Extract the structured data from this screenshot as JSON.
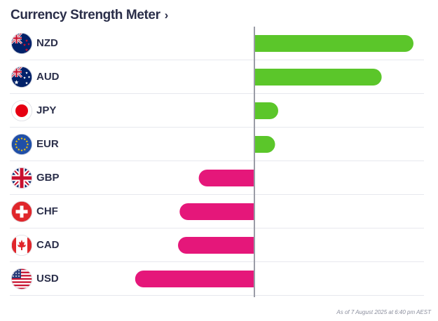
{
  "header": {
    "title": "Currency Strength Meter",
    "chevron": "›"
  },
  "chart_data": {
    "type": "bar",
    "orientation": "horizontal",
    "title": "Currency Strength Meter",
    "categories": [
      "NZD",
      "AUD",
      "JPY",
      "EUR",
      "GBP",
      "CHF",
      "CAD",
      "USD"
    ],
    "values": [
      100,
      80,
      15,
      13,
      -35,
      -47,
      -48,
      -75
    ],
    "flag_icons": [
      "nz-flag-icon",
      "au-flag-icon",
      "jp-flag-icon",
      "eu-flag-icon",
      "gb-flag-icon",
      "ch-flag-icon",
      "ca-flag-icon",
      "us-flag-icon"
    ],
    "xlim": [
      -154,
      100
    ],
    "positive_color": "#5bc62a",
    "negative_color": "#e5177a",
    "axis_color": "#9a9ca6",
    "grid": false
  },
  "footer": {
    "timestamp": "As of 7 August 2025 at 6:40 pm AEST"
  }
}
